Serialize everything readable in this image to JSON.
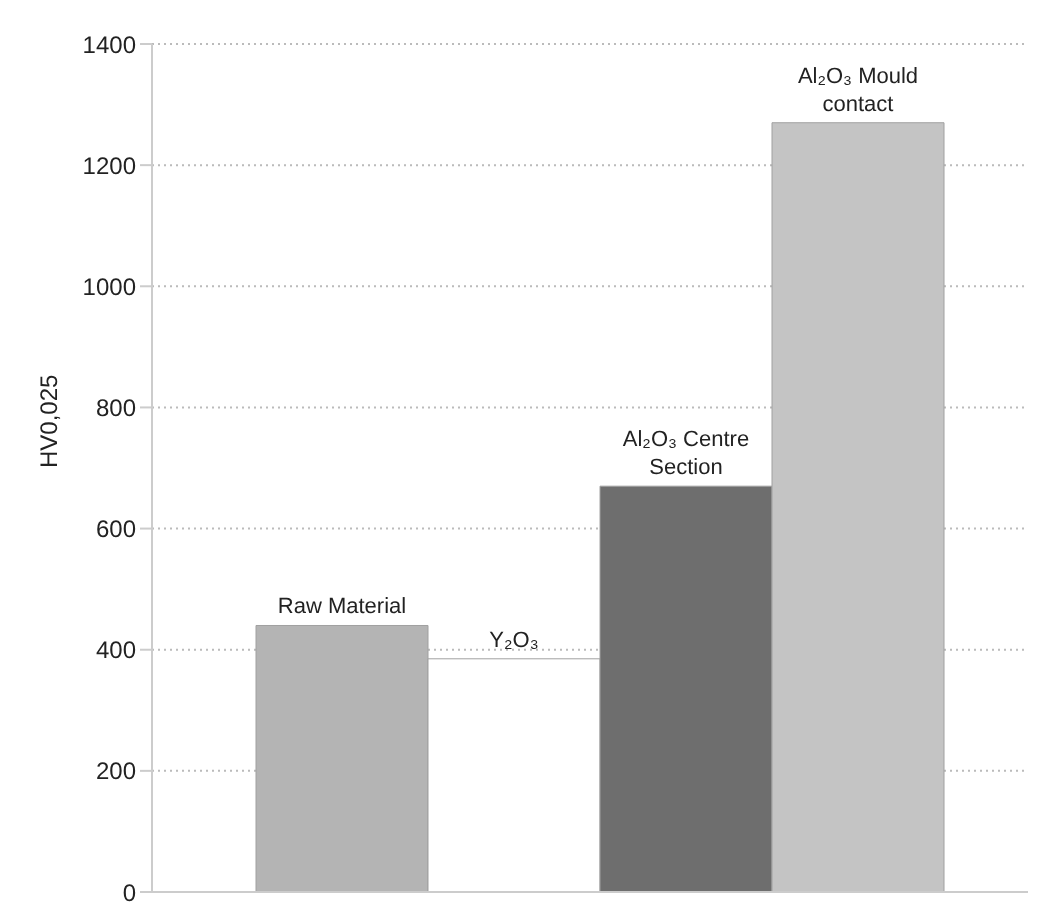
{
  "chart_data": {
    "type": "bar",
    "ylabel": "HV0,025",
    "categories": [
      "Raw Material",
      "Y₂O₃",
      "Al₂O₃ Centre Section",
      "Al₂O₃ Mould contact"
    ],
    "values": [
      440,
      385,
      670,
      1270
    ],
    "colors": [
      "#b4b4b4",
      "#ffffff",
      "#6e6e6e",
      "#c4c4c4"
    ],
    "ylim": [
      0,
      1400
    ],
    "yticks": [
      0,
      200,
      400,
      600,
      800,
      1000,
      1200,
      1400
    ],
    "grid": "y",
    "tick_labels": "y"
  }
}
